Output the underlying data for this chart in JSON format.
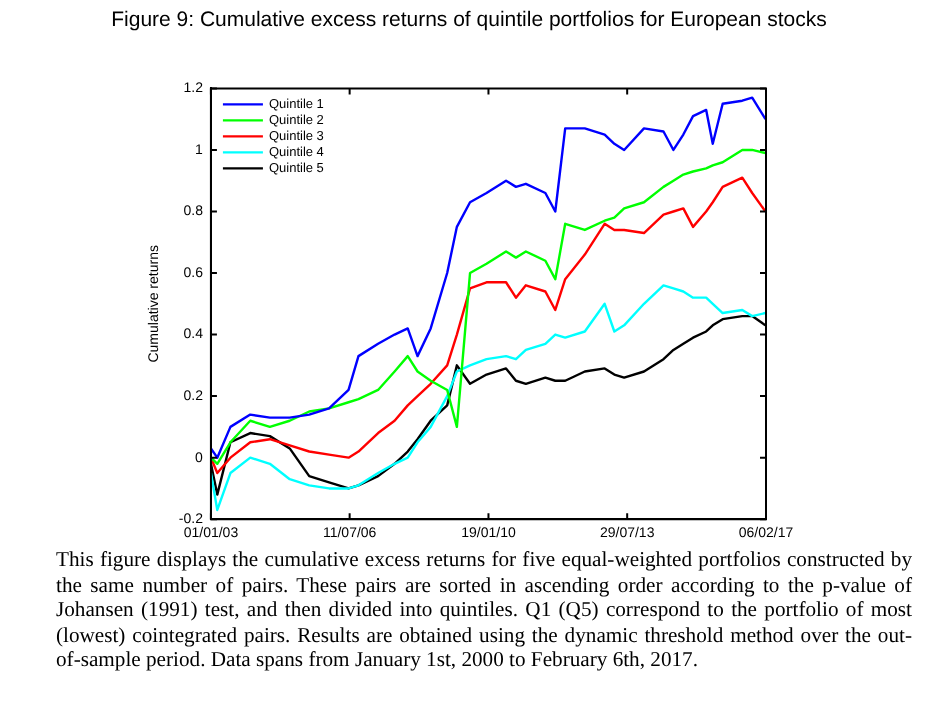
{
  "chart_data": {
    "type": "line",
    "title": "Figure 9: Cumulative excess returns of quintile portfolios for European stocks",
    "ylabel": "Cumulative returns",
    "x": [
      "2003-01-01",
      "2003-03-01",
      "2003-07-01",
      "2004-01-01",
      "2004-07-01",
      "2005-01-01",
      "2005-07-01",
      "2006-01-01",
      "2006-07-01",
      "2006-10-01",
      "2007-04-01",
      "2007-09-01",
      "2008-01-01",
      "2008-04-01",
      "2008-08-01",
      "2009-01-01",
      "2009-04-01",
      "2009-08-01",
      "2010-01-01",
      "2010-07-01",
      "2010-10-01",
      "2011-01-01",
      "2011-07-01",
      "2011-10-01",
      "2012-01-01",
      "2012-07-01",
      "2013-01-01",
      "2013-04-01",
      "2013-07-01",
      "2014-01-01",
      "2014-07-01",
      "2014-10-01",
      "2015-01-01",
      "2015-04-01",
      "2015-08-01",
      "2015-10-01",
      "2016-01-01",
      "2016-07-01",
      "2016-10-01",
      "2017-02-01"
    ],
    "series": [
      {
        "name": "Quintile 1",
        "color": "#0000ff",
        "values": [
          0.03,
          0.0,
          0.1,
          0.14,
          0.13,
          0.13,
          0.14,
          0.16,
          0.22,
          0.33,
          0.37,
          0.4,
          0.42,
          0.33,
          0.42,
          0.6,
          0.75,
          0.83,
          0.86,
          0.9,
          0.88,
          0.89,
          0.86,
          0.8,
          1.07,
          1.07,
          1.05,
          1.02,
          1.0,
          1.07,
          1.06,
          1.0,
          1.05,
          1.11,
          1.13,
          1.02,
          1.15,
          1.16,
          1.17,
          1.1
        ]
      },
      {
        "name": "Quintile 2",
        "color": "#00ff00",
        "values": [
          0.0,
          -0.02,
          0.05,
          0.12,
          0.1,
          0.12,
          0.15,
          0.16,
          0.18,
          0.19,
          0.22,
          0.28,
          0.33,
          0.28,
          0.25,
          0.22,
          0.1,
          0.6,
          0.63,
          0.67,
          0.65,
          0.67,
          0.64,
          0.58,
          0.76,
          0.74,
          0.77,
          0.78,
          0.81,
          0.83,
          0.88,
          0.9,
          0.92,
          0.93,
          0.94,
          0.95,
          0.96,
          1.0,
          1.0,
          0.99
        ]
      },
      {
        "name": "Quintile 3",
        "color": "#ff0000",
        "values": [
          0.0,
          -0.05,
          0.0,
          0.05,
          0.06,
          0.04,
          0.02,
          0.01,
          0.0,
          0.02,
          0.08,
          0.12,
          0.17,
          0.2,
          0.24,
          0.3,
          0.4,
          0.55,
          0.57,
          0.57,
          0.52,
          0.56,
          0.54,
          0.48,
          0.58,
          0.66,
          0.76,
          0.74,
          0.74,
          0.73,
          0.79,
          0.8,
          0.81,
          0.75,
          0.8,
          0.83,
          0.88,
          0.91,
          0.86,
          0.8
        ]
      },
      {
        "name": "Quintile 4",
        "color": "#00ffff",
        "values": [
          -0.05,
          -0.17,
          -0.05,
          0.0,
          -0.02,
          -0.07,
          -0.09,
          -0.1,
          -0.1,
          -0.09,
          -0.05,
          -0.02,
          0.0,
          0.05,
          0.1,
          0.2,
          0.28,
          0.3,
          0.32,
          0.33,
          0.32,
          0.35,
          0.37,
          0.4,
          0.39,
          0.41,
          0.5,
          0.41,
          0.43,
          0.5,
          0.56,
          0.55,
          0.54,
          0.52,
          0.52,
          0.5,
          0.47,
          0.48,
          0.46,
          0.47
        ]
      },
      {
        "name": "Quintile 5",
        "color": "#000000",
        "values": [
          -0.02,
          -0.12,
          0.05,
          0.08,
          0.07,
          0.03,
          -0.06,
          -0.08,
          -0.1,
          -0.09,
          -0.06,
          -0.02,
          0.02,
          0.06,
          0.12,
          0.17,
          0.3,
          0.24,
          0.27,
          0.29,
          0.25,
          0.24,
          0.26,
          0.25,
          0.25,
          0.28,
          0.29,
          0.27,
          0.26,
          0.28,
          0.32,
          0.35,
          0.37,
          0.39,
          0.41,
          0.43,
          0.45,
          0.46,
          0.46,
          0.43
        ]
      }
    ],
    "xlim": [
      "2003-01-01",
      "2017-02-06"
    ],
    "xticks": [
      {
        "value": "2003-01-01",
        "label": "01/01/03"
      },
      {
        "value": "2006-07-11",
        "label": "11/07/06"
      },
      {
        "value": "2010-01-19",
        "label": "19/01/10"
      },
      {
        "value": "2013-07-29",
        "label": "29/07/13"
      },
      {
        "value": "2017-02-06",
        "label": "06/02/17"
      }
    ],
    "ylim": [
      -0.2,
      1.2
    ],
    "yticks": [
      -0.2,
      0,
      0.2,
      0.4,
      0.6,
      0.8,
      1,
      1.2
    ],
    "legend": "top left",
    "grid": false,
    "annotations": [
      "This figure displays the cumulative excess returns for five equal-weighted portfolios constructed by the same number of pairs. These pairs are sorted in ascending order according to the p-value of Johansen (1991) test, and then divided into quintiles. Q1 (Q5) correspond to the portfolio of most (lowest) cointegrated pairs. Results are obtained using the dynamic threshold method over the out-of-sample period. Data spans from January 1st, 2000 to February 6th, 2017."
    ]
  }
}
